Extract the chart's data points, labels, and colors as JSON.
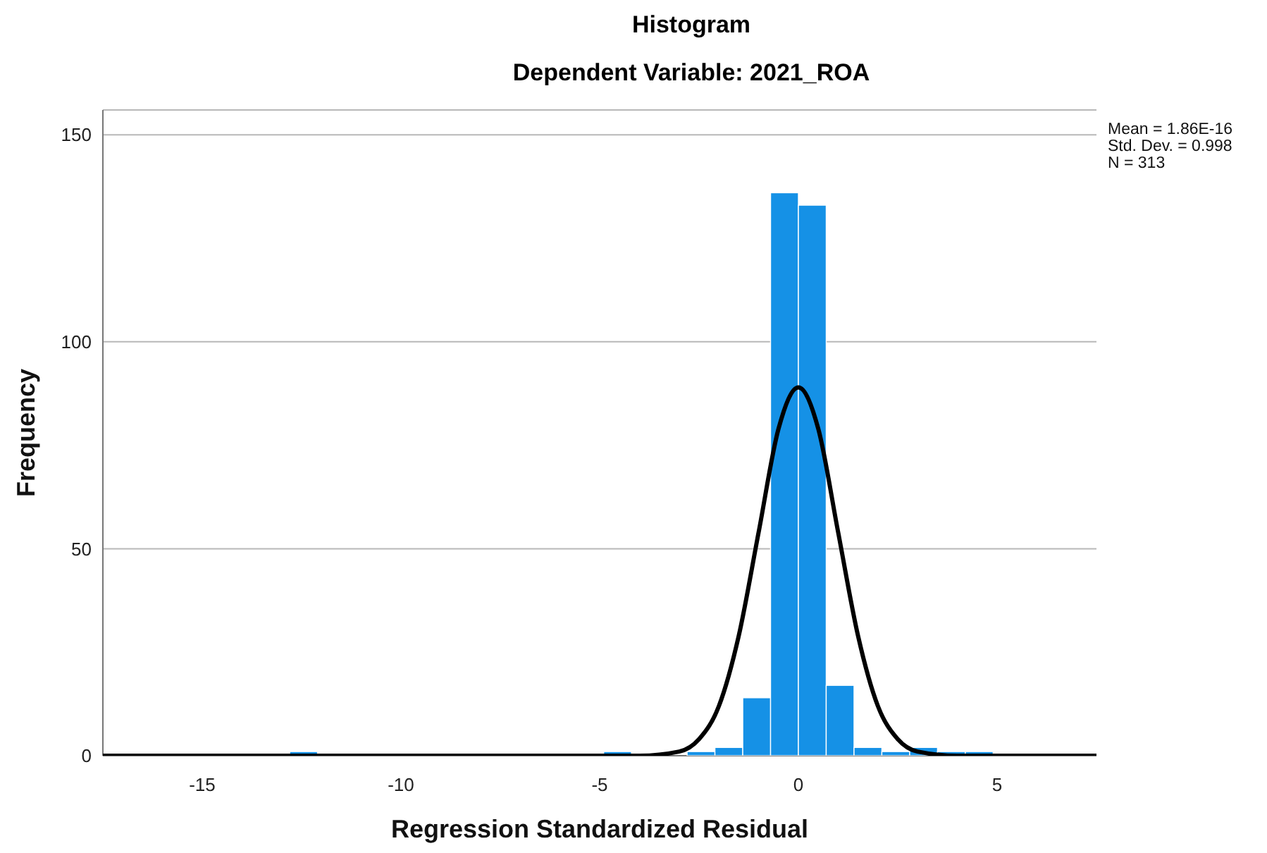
{
  "chart_data": {
    "type": "histogram",
    "title": "Histogram",
    "subtitle": "Dependent Variable: 2021_ROA",
    "xlabel": "Regression Standardized Residual",
    "ylabel": "Frequency",
    "bins": [
      -12.8,
      -12.1,
      -4.9,
      -4.2,
      -2.8,
      -2.1,
      -1.4,
      -0.7,
      0,
      0.7,
      1.4,
      2.1,
      2.8,
      3.5,
      4.2,
      4.9
    ],
    "values": [
      1,
      0,
      1,
      0,
      1,
      2,
      14,
      136,
      133,
      17,
      2,
      1,
      2,
      1,
      1
    ],
    "color": "#1591e6",
    "series": [
      {
        "type": "line",
        "color": "#000000",
        "x": [
          -17.5,
          -4,
          -3,
          -2.5,
          -2,
          -1.5,
          -1,
          -0.5,
          0,
          0.5,
          1,
          1.5,
          2,
          2.5,
          3,
          4,
          7.5
        ],
        "values": [
          0,
          0,
          1,
          4,
          12,
          29,
          54,
          79,
          89,
          79,
          54,
          29,
          12,
          4,
          1,
          0,
          0
        ]
      }
    ],
    "xlim": [
      -17.5,
      7.5
    ],
    "xticks": [
      -15,
      -10,
      -5,
      0,
      5
    ],
    "ylim": [
      0,
      156
    ],
    "yticks": [
      0,
      50,
      100,
      150
    ],
    "grid": "y",
    "annotations": [
      "Mean = 1.86E-16",
      "Std. Dev. = 0.998",
      "N = 313"
    ]
  }
}
